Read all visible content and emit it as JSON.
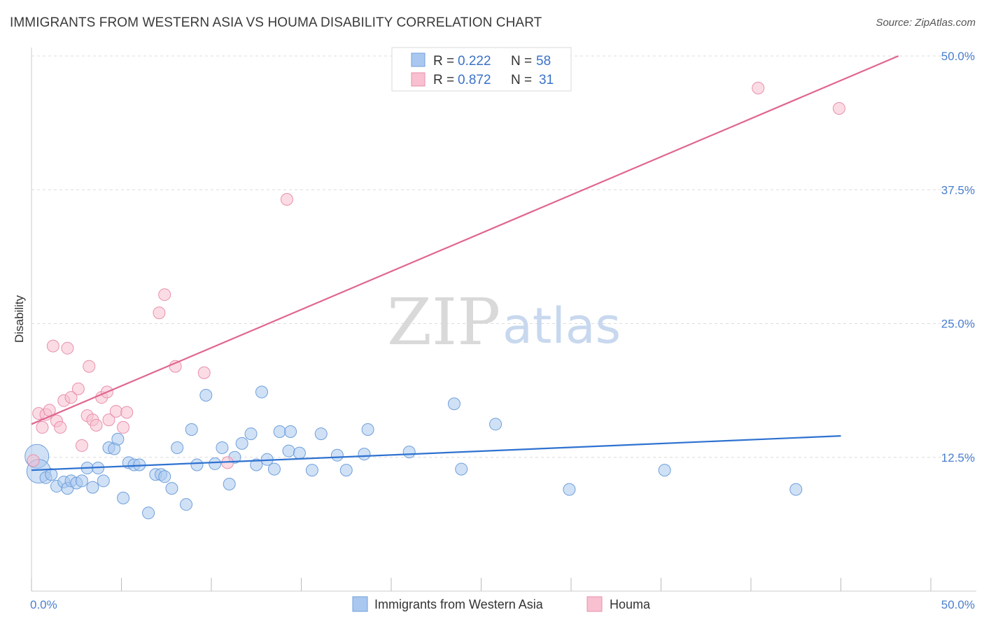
{
  "title": "IMMIGRANTS FROM WESTERN ASIA VS HOUMA DISABILITY CORRELATION CHART",
  "source": "Source: ZipAtlas.com",
  "watermark": {
    "zip": "ZIP",
    "atlas": "atlas"
  },
  "legend": {
    "r_label": "R =",
    "n_label": "N =",
    "rows": [
      {
        "series": "Immigrants from Western Asia",
        "r": "0.222",
        "n": "58"
      },
      {
        "series": "Houma",
        "r": "0.872",
        "n": "31"
      }
    ]
  },
  "chart_data": {
    "type": "scatter",
    "title": "IMMIGRANTS FROM WESTERN ASIA VS HOUMA DISABILITY CORRELATION CHART",
    "xlabel": "",
    "ylabel": "Disability",
    "xlim": [
      0,
      50
    ],
    "ylim": [
      0,
      52.5
    ],
    "x_tick_labels": [
      "0.0%",
      "50.0%"
    ],
    "y_ticks": [
      12.5,
      25.0,
      37.5,
      50.0
    ],
    "y_tick_labels": [
      "12.5%",
      "25.0%",
      "37.5%",
      "50.0%"
    ],
    "grid": true,
    "legend_position": "top-center",
    "colors": {
      "series1_fill": "#aac8ef",
      "series1_stroke": "#6f9fdc",
      "series1_line": "#2f72d0",
      "series2_fill": "#f8c0d0",
      "series2_stroke": "#e890aa",
      "series2_line": "#e06690",
      "axis_text": "#4a7fd0"
    },
    "series": [
      {
        "name": "Immigrants from Western Asia",
        "trend": {
          "x": [
            0,
            45
          ],
          "y": [
            11.3,
            14.5
          ]
        },
        "points": [
          {
            "x": 0.3,
            "y": 12.6,
            "big": true
          },
          {
            "x": 0.4,
            "y": 11.2,
            "big": true
          },
          {
            "x": 0.8,
            "y": 10.6
          },
          {
            "x": 1.1,
            "y": 10.9
          },
          {
            "x": 1.4,
            "y": 9.8
          },
          {
            "x": 1.8,
            "y": 10.2
          },
          {
            "x": 2.0,
            "y": 9.6
          },
          {
            "x": 2.2,
            "y": 10.3
          },
          {
            "x": 2.5,
            "y": 10.1
          },
          {
            "x": 2.8,
            "y": 10.3
          },
          {
            "x": 3.1,
            "y": 11.5
          },
          {
            "x": 3.4,
            "y": 9.7
          },
          {
            "x": 3.7,
            "y": 11.5
          },
          {
            "x": 4.0,
            "y": 10.3
          },
          {
            "x": 4.3,
            "y": 13.4
          },
          {
            "x": 4.6,
            "y": 13.3
          },
          {
            "x": 4.8,
            "y": 14.2
          },
          {
            "x": 5.1,
            "y": 8.7
          },
          {
            "x": 5.4,
            "y": 12.0
          },
          {
            "x": 5.7,
            "y": 11.8
          },
          {
            "x": 6.0,
            "y": 11.8
          },
          {
            "x": 6.5,
            "y": 7.3
          },
          {
            "x": 6.9,
            "y": 10.9
          },
          {
            "x": 7.2,
            "y": 10.9
          },
          {
            "x": 7.4,
            "y": 10.7
          },
          {
            "x": 7.8,
            "y": 9.6
          },
          {
            "x": 8.1,
            "y": 13.4
          },
          {
            "x": 8.6,
            "y": 8.1
          },
          {
            "x": 8.9,
            "y": 15.1
          },
          {
            "x": 9.2,
            "y": 11.8
          },
          {
            "x": 9.7,
            "y": 18.3
          },
          {
            "x": 10.2,
            "y": 11.9
          },
          {
            "x": 10.6,
            "y": 13.4
          },
          {
            "x": 11.0,
            "y": 10.0
          },
          {
            "x": 11.3,
            "y": 12.5
          },
          {
            "x": 11.7,
            "y": 13.8
          },
          {
            "x": 12.2,
            "y": 14.7
          },
          {
            "x": 12.5,
            "y": 11.8
          },
          {
            "x": 12.8,
            "y": 18.6
          },
          {
            "x": 13.1,
            "y": 12.3
          },
          {
            "x": 13.5,
            "y": 11.4
          },
          {
            "x": 13.8,
            "y": 14.9
          },
          {
            "x": 14.3,
            "y": 13.1
          },
          {
            "x": 14.4,
            "y": 14.9
          },
          {
            "x": 14.9,
            "y": 12.9
          },
          {
            "x": 15.6,
            "y": 11.3
          },
          {
            "x": 16.1,
            "y": 14.7
          },
          {
            "x": 17.0,
            "y": 12.7
          },
          {
            "x": 17.5,
            "y": 11.3
          },
          {
            "x": 18.5,
            "y": 12.8
          },
          {
            "x": 18.7,
            "y": 15.1
          },
          {
            "x": 21.0,
            "y": 13.0
          },
          {
            "x": 23.5,
            "y": 17.5
          },
          {
            "x": 23.9,
            "y": 11.4
          },
          {
            "x": 25.8,
            "y": 15.6
          },
          {
            "x": 29.9,
            "y": 9.5
          },
          {
            "x": 35.2,
            "y": 11.3
          },
          {
            "x": 42.5,
            "y": 9.5
          }
        ]
      },
      {
        "name": "Houma",
        "trend": {
          "x": [
            0,
            48.2
          ],
          "y": [
            15.6,
            50.0
          ]
        },
        "points": [
          {
            "x": 0.1,
            "y": 12.2
          },
          {
            "x": 0.4,
            "y": 16.6
          },
          {
            "x": 0.6,
            "y": 15.3
          },
          {
            "x": 0.8,
            "y": 16.5
          },
          {
            "x": 1.0,
            "y": 16.9
          },
          {
            "x": 1.2,
            "y": 22.9
          },
          {
            "x": 1.4,
            "y": 15.9
          },
          {
            "x": 1.6,
            "y": 15.3
          },
          {
            "x": 1.8,
            "y": 17.8
          },
          {
            "x": 2.0,
            "y": 22.7
          },
          {
            "x": 2.2,
            "y": 18.1
          },
          {
            "x": 2.6,
            "y": 18.9
          },
          {
            "x": 2.8,
            "y": 13.6
          },
          {
            "x": 3.1,
            "y": 16.4
          },
          {
            "x": 3.2,
            "y": 21.0
          },
          {
            "x": 3.4,
            "y": 16.0
          },
          {
            "x": 3.6,
            "y": 15.5
          },
          {
            "x": 3.9,
            "y": 18.1
          },
          {
            "x": 4.2,
            "y": 18.6
          },
          {
            "x": 4.3,
            "y": 16.0
          },
          {
            "x": 4.7,
            "y": 16.8
          },
          {
            "x": 5.1,
            "y": 15.3
          },
          {
            "x": 5.3,
            "y": 16.7
          },
          {
            "x": 7.1,
            "y": 26.0
          },
          {
            "x": 7.4,
            "y": 27.7
          },
          {
            "x": 8.0,
            "y": 21.0
          },
          {
            "x": 9.6,
            "y": 20.4
          },
          {
            "x": 10.9,
            "y": 12.0
          },
          {
            "x": 14.2,
            "y": 36.6
          },
          {
            "x": 40.4,
            "y": 47.0
          },
          {
            "x": 44.9,
            "y": 45.1
          }
        ]
      }
    ]
  },
  "bottom_legend": [
    "Immigrants from Western Asia",
    "Houma"
  ]
}
